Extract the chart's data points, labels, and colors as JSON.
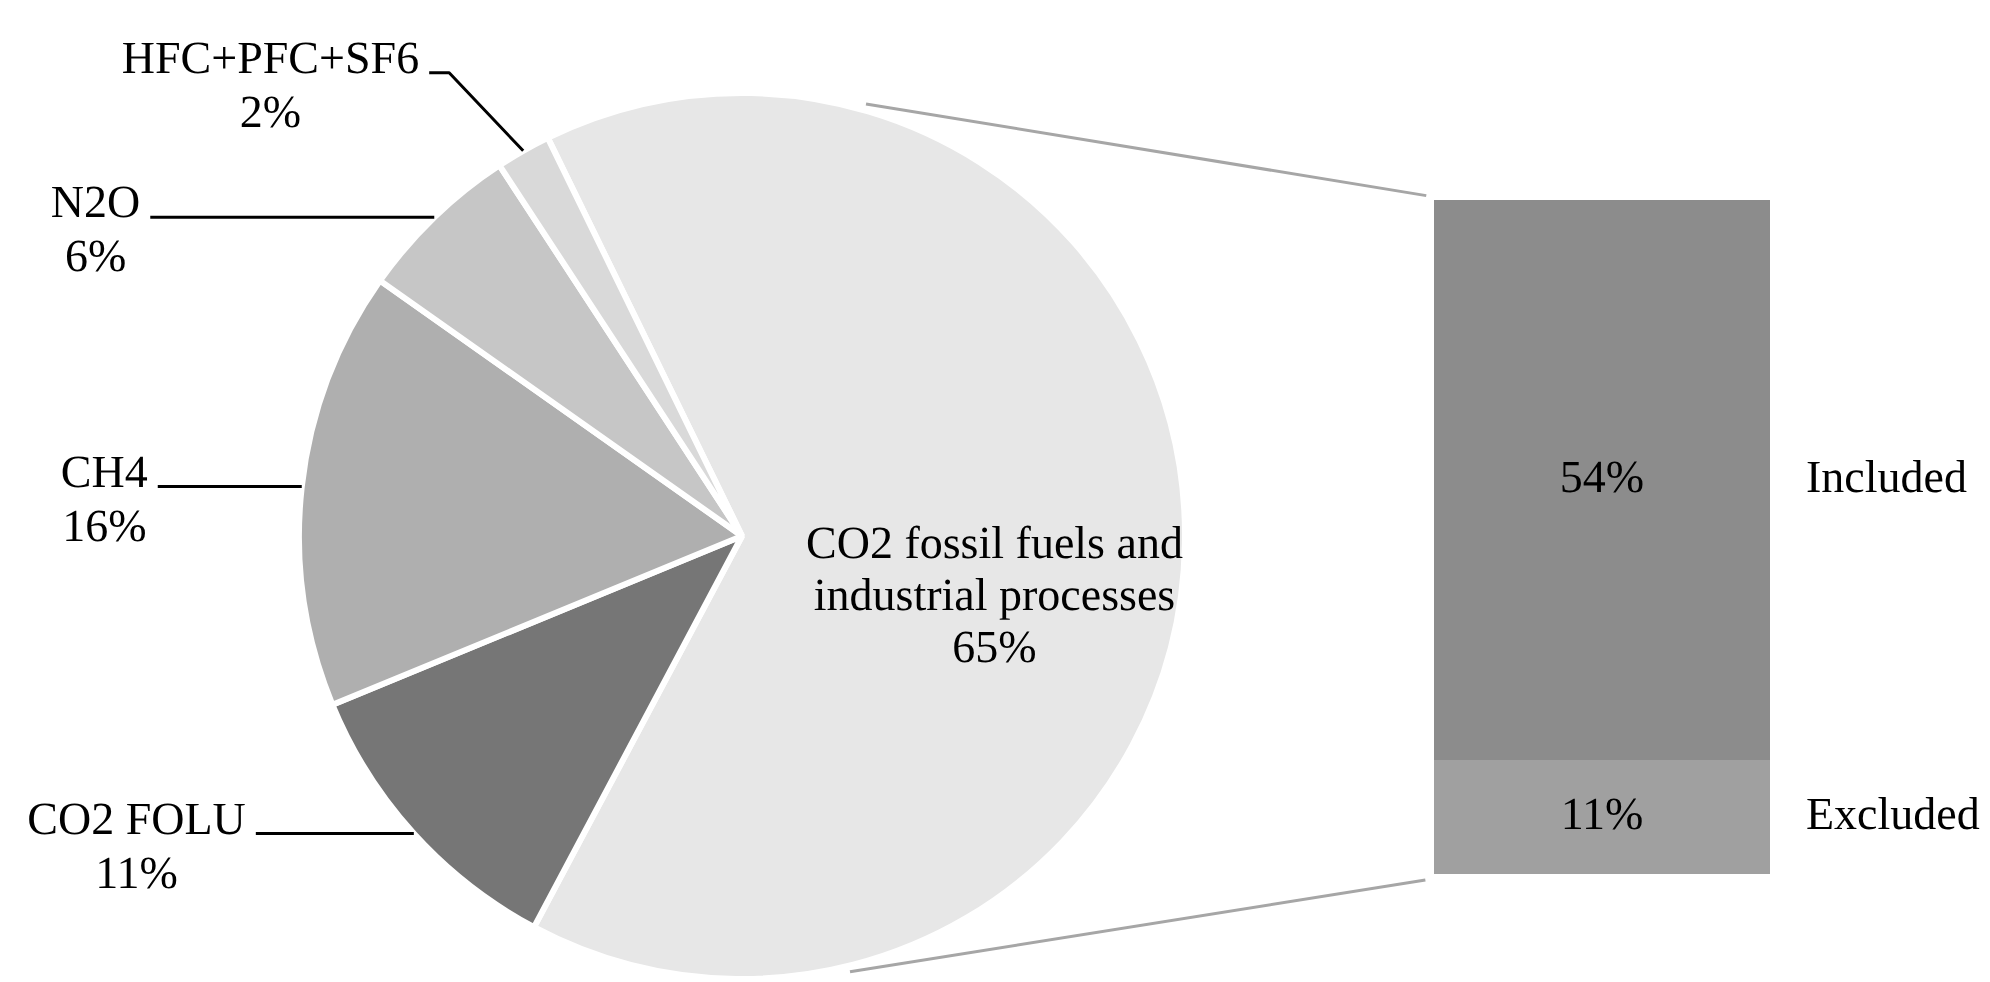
{
  "chart_data": [
    {
      "type": "pie",
      "categories": [
        "CO2 fossil fuels and industrial processes",
        "CO2 FOLU",
        "CH4",
        "N2O",
        "HFC+PFC+SF6"
      ],
      "values": [
        65,
        11,
        16,
        6,
        2
      ],
      "colors": [
        "#e7e7e7",
        "#767676",
        "#afafaf",
        "#c6c6c6",
        "#d9d9d9"
      ],
      "value_labels": [
        "65%",
        "11%",
        "16%",
        "6%",
        "2%"
      ]
    },
    {
      "type": "bar",
      "stacked": true,
      "categories": [
        null
      ],
      "series": [
        {
          "name": "Excluded",
          "color": "#a0a0a0",
          "values": [
            11
          ],
          "value_labels": [
            "11%"
          ]
        },
        {
          "name": "Included",
          "color": "#8c8c8c",
          "values": [
            54
          ],
          "value_labels": [
            "54%"
          ]
        }
      ],
      "tick_labels": false
    }
  ]
}
